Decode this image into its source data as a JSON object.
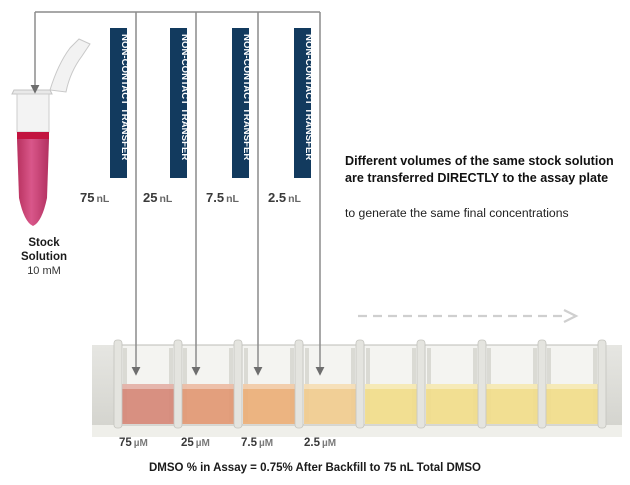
{
  "stock": {
    "title": "Stock Solution",
    "concentration": "10 mM"
  },
  "banner_label": "NON-CONTACT TRANSFER",
  "transfers": [
    {
      "volume": "75",
      "volume_unit": "nL",
      "final_conc": "75",
      "conc_unit": "µM",
      "color": "#d68a7a"
    },
    {
      "volume": "25",
      "volume_unit": "nL",
      "final_conc": "25",
      "conc_unit": "µM",
      "color": "#e29a76"
    },
    {
      "volume": "7.5",
      "volume_unit": "nL",
      "final_conc": "7.5",
      "conc_unit": "µM",
      "color": "#ebb07a"
    },
    {
      "volume": "2.5",
      "volume_unit": "nL",
      "final_conc": "2.5",
      "conc_unit": "µM",
      "color": "#f0cc90"
    }
  ],
  "extra_wells": {
    "count": 4,
    "color": "#f1dd8c"
  },
  "description": {
    "headline": "Different volumes of the same stock solution are transferred DIRECTLY to the assay plate",
    "subline": "to generate the same final concentrations"
  },
  "footer": "DMSO % in Assay = 0.75% After Backfill to 75 nL Total DMSO",
  "colors": {
    "banner": "#123a5e",
    "line": "#8c8c8c",
    "arrow": "#6e6e6e",
    "tube_liquid": "#c8416f",
    "tube_band": "#c2133f"
  }
}
